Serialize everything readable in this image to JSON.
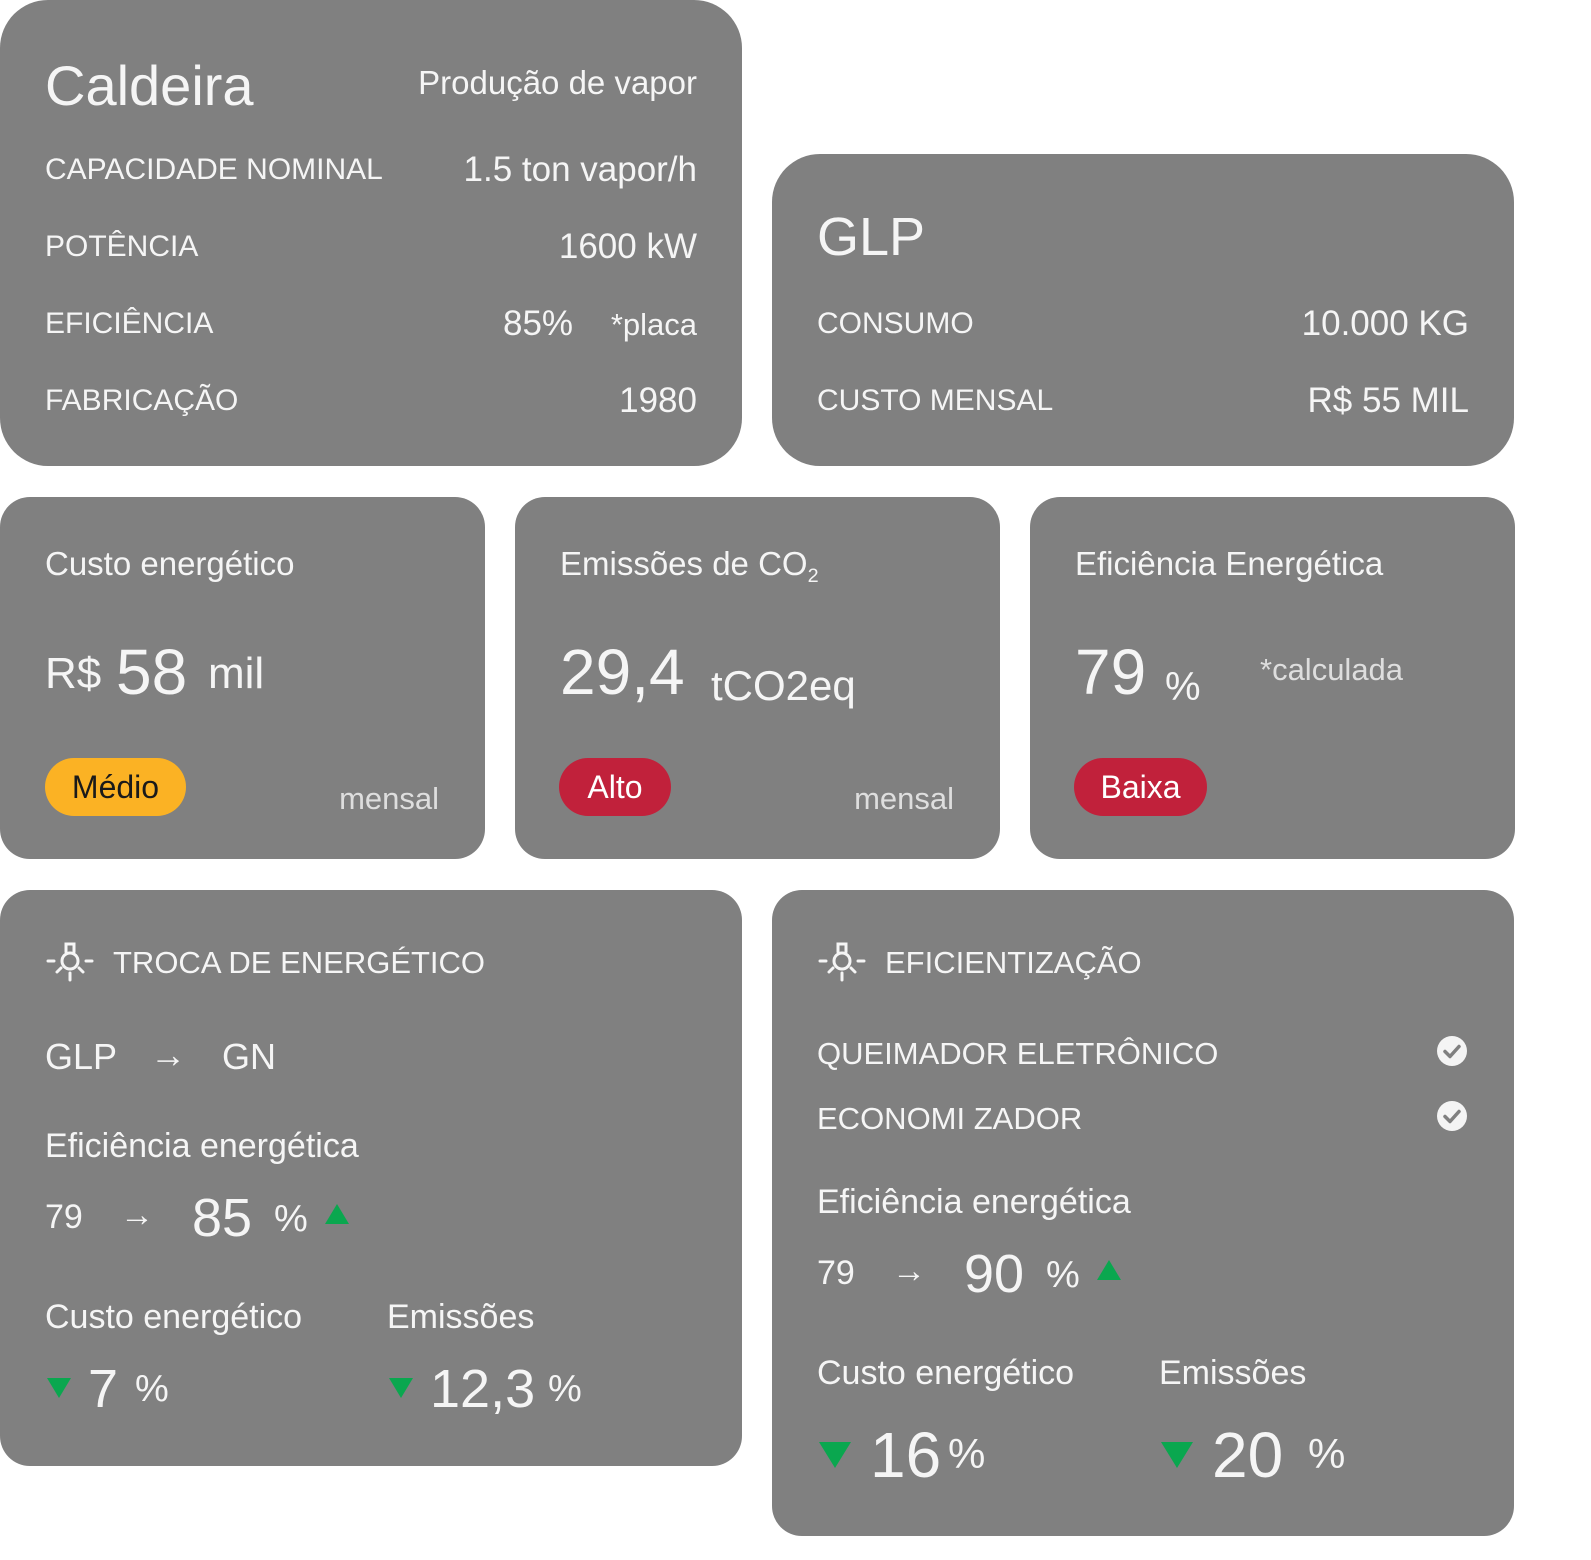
{
  "caldeira": {
    "title": "Caldeira",
    "subtitle": "Produção de vapor",
    "rows": [
      {
        "label": "CAPACIDADE NOMINAL",
        "value": "1.5 ton vapor/h"
      },
      {
        "label": "POTÊNCIA",
        "value": "1600 kW"
      },
      {
        "label": "EFICIÊNCIA",
        "value": "85%",
        "note": "*placa"
      },
      {
        "label": "FABRICAÇÃO",
        "value": "1980"
      }
    ]
  },
  "glp": {
    "title": "GLP",
    "rows": [
      {
        "label": "CONSUMO",
        "value": "10.000 KG"
      },
      {
        "label": "CUSTO MENSAL",
        "value": "R$ 55 MIL"
      }
    ]
  },
  "custo": {
    "title": "Custo energético",
    "prefix": "R$",
    "value": "58",
    "unit": "mil",
    "badge": "Médio",
    "badge_color": "#fbb224",
    "period": "mensal"
  },
  "emissoes": {
    "title_main": "Emissões de CO",
    "title_sub": "2",
    "value": "29,4",
    "unit": "tCO2eq",
    "badge": "Alto",
    "badge_color": "#c1213b",
    "period": "mensal"
  },
  "eficiencia": {
    "title": "Eficiência Energética",
    "value": "79",
    "unit": "%",
    "note": "*calculada",
    "badge": "Baixa",
    "badge_color": "#c1213b"
  },
  "troca": {
    "icon": "lightbulb-icon",
    "title": "TROCA DE ENERGÉTICO",
    "from": "GLP",
    "arrow": "→",
    "to": "GN",
    "eff_label": "Eficiência energética",
    "eff_from": "79",
    "eff_to": "85",
    "eff_unit": "%",
    "cost_label": "Custo energético",
    "cost_value": "7",
    "cost_unit": "%",
    "emis_label": "Emissões",
    "emis_value": "12,3",
    "emis_unit": "%",
    "up_color": "#0aa74f"
  },
  "eficientizacao": {
    "icon": "lightbulb-icon",
    "title": "EFICIENTIZAÇÃO",
    "items": [
      {
        "label": "QUEIMADOR ELETRÔNICO",
        "checked": true
      },
      {
        "label": "ECONOMI ZADOR",
        "checked": true
      }
    ],
    "eff_label": "Eficiência energética",
    "eff_from": "79",
    "arrow": "→",
    "eff_to": "90",
    "eff_unit": "%",
    "cost_label": "Custo energético",
    "cost_value": "16",
    "cost_unit": "%",
    "emis_label": "Emissões",
    "emis_value": "20",
    "emis_unit": "%"
  }
}
